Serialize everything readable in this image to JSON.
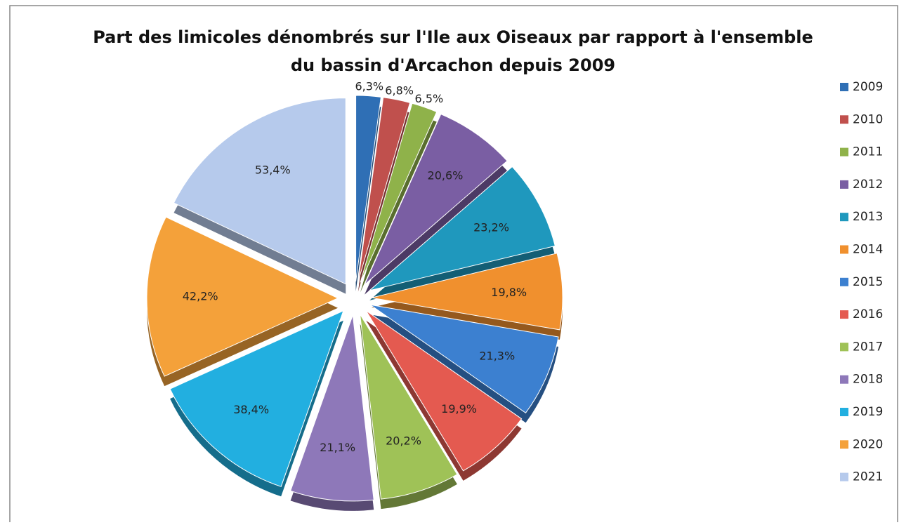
{
  "chart_data": {
    "type": "pie",
    "title": [
      "Part des limicoles dénombrés sur l'Ile aux Oiseaux par rapport à l'ensemble",
      "du bassin d'Arcachon depuis 2009"
    ],
    "categories": [
      "2009",
      "2010",
      "2011",
      "2012",
      "2013",
      "2014",
      "2015",
      "2016",
      "2017",
      "2018",
      "2019",
      "2020",
      "2021"
    ],
    "values": [
      6.3,
      6.8,
      6.5,
      20.6,
      23.2,
      19.8,
      21.3,
      19.9,
      20.2,
      21.1,
      38.4,
      42.2,
      53.4
    ],
    "value_labels": [
      "6,3%",
      "6,8%",
      "6,5%",
      "20,6%",
      "23,2%",
      "19,8%",
      "21,3%",
      "19,9%",
      "20,2%",
      "21,1%",
      "38,4%",
      "42,2%",
      "53,4%"
    ],
    "colors": [
      "#2f6fb5",
      "#c0504d",
      "#8fb24a",
      "#7a5ea3",
      "#1f98bd",
      "#f0902e",
      "#3c80d0",
      "#e45a50",
      "#9fc257",
      "#8e78b9",
      "#22afe0",
      "#f4a13a",
      "#b6caec"
    ],
    "legend": "right"
  }
}
